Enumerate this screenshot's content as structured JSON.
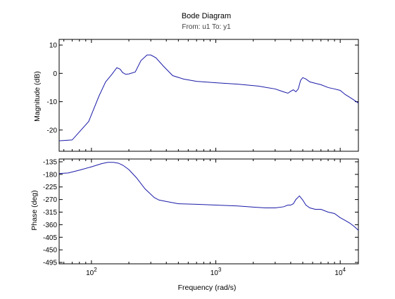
{
  "chart_data": {
    "type": "line",
    "title": "Bode Diagram",
    "subtitle": "From: u1  To: y1",
    "xlabel": "Frequency  (rad/s)",
    "xscale": "log",
    "xlim": [
      55,
      14000
    ],
    "xticks": [
      {
        "base": "10",
        "exp": "2"
      },
      {
        "base": "10",
        "exp": "3"
      },
      {
        "base": "10",
        "exp": "4"
      }
    ],
    "line_color": "#1a1aa8",
    "grid": false,
    "panels": [
      {
        "name": "magnitude",
        "ylabel": "Magnitude (dB)",
        "ylim": [
          -27.5,
          12
        ],
        "yticks": [
          "10",
          "0",
          "-10",
          "-20"
        ],
        "ytick_values": [
          10,
          0,
          -10,
          -20
        ],
        "x": [
          55,
          70,
          95,
          115,
          130,
          145,
          160,
          170,
          178,
          188,
          200,
          225,
          250,
          280,
          300,
          330,
          380,
          450,
          550,
          700,
          1000,
          1500,
          2200,
          3000,
          3500,
          3800,
          4000,
          4200,
          4400,
          4600,
          4800,
          5000,
          5300,
          5700,
          6300,
          7000,
          8000,
          9000,
          10000,
          11000,
          12000,
          13000,
          14000
        ],
        "y": [
          -23.8,
          -23.5,
          -17,
          -8,
          -3,
          -0.5,
          2,
          1.5,
          0.3,
          -0.3,
          -0.2,
          0.5,
          4.5,
          6.5,
          6.5,
          5.5,
          2.5,
          -0.8,
          -2,
          -2.8,
          -3.3,
          -3.8,
          -4.5,
          -5.5,
          -6.5,
          -7,
          -6.3,
          -5.8,
          -6.5,
          -5.5,
          -2.5,
          -1.5,
          -2,
          -3,
          -3.5,
          -4,
          -5,
          -5.5,
          -6,
          -7.5,
          -8.5,
          -9.5,
          -10.5
        ]
      },
      {
        "name": "phase",
        "ylabel": "Phase (deg)",
        "ylim": [
          -500,
          -125
        ],
        "yticks": [
          "-135",
          "-180",
          "-225",
          "-270",
          "-315",
          "-360",
          "-405",
          "-450",
          "-495"
        ],
        "ytick_values": [
          -135,
          -180,
          -225,
          -270,
          -315,
          -360,
          -405,
          -450,
          -495
        ],
        "x": [
          55,
          65,
          80,
          100,
          120,
          135,
          150,
          165,
          180,
          200,
          230,
          270,
          320,
          350,
          400,
          500,
          700,
          1000,
          1500,
          2000,
          2500,
          3000,
          3500,
          3800,
          4000,
          4200,
          4400,
          4700,
          5000,
          5300,
          5700,
          6300,
          7000,
          8000,
          9000,
          10000,
          11000,
          12000,
          13000,
          14000
        ],
        "y": [
          -177,
          -175,
          -165,
          -153,
          -142,
          -137,
          -137,
          -140,
          -148,
          -163,
          -192,
          -232,
          -263,
          -272,
          -277,
          -285,
          -287,
          -290,
          -293,
          -297,
          -300,
          -300,
          -296,
          -290,
          -290,
          -285,
          -270,
          -257,
          -272,
          -290,
          -300,
          -305,
          -305,
          -315,
          -320,
          -335,
          -345,
          -355,
          -367,
          -380
        ]
      }
    ]
  }
}
